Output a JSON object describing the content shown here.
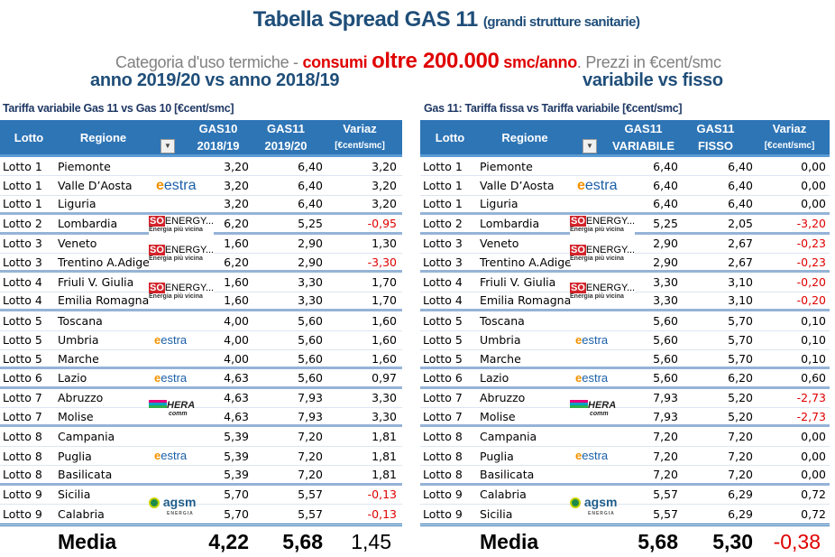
{
  "title": {
    "main": "Tabella Spread GAS 11",
    "sub": "(grandi strutture sanitarie)"
  },
  "subtitle": {
    "p1": "Categoria d'uso termiche - ",
    "p2": "consumi ",
    "p3": "oltre 200.000",
    "p4": " smc/anno",
    "p5": ". Prezzi in €cent/smc"
  },
  "colors": {
    "header": "#2e75b6",
    "title": "#1f4e79",
    "negative": "#e00000"
  },
  "left": {
    "section": "anno 2019/20 vs anno 2018/19",
    "caption": "Tariffa variabile Gas 11 vs Gas 10 [€cent/smc]",
    "headers": {
      "lotto": "Lotto",
      "regione": "Regione",
      "c1a": "GAS10",
      "c1b": "2018/19",
      "c2a": "GAS11",
      "c2b": "2019/20",
      "c3a": "Variaz",
      "c3b": "[€cent/smc]"
    },
    "rows": [
      {
        "lotto": "Lotto 1",
        "regione": "Piemonte",
        "a": "3,20",
        "b": "6,40",
        "v": "3,20"
      },
      {
        "lotto": "Lotto 1",
        "regione": "Valle D’Aosta",
        "a": "3,20",
        "b": "6,40",
        "v": "3,20",
        "logo": "estra"
      },
      {
        "lotto": "Lotto 1",
        "regione": "Liguria",
        "a": "3,20",
        "b": "6,40",
        "v": "3,20",
        "end": true
      },
      {
        "lotto": "Lotto 2",
        "regione": "Lombardia",
        "a": "6,20",
        "b": "5,25",
        "v": "-0,95",
        "logo": "soenergy",
        "end": true
      },
      {
        "lotto": "Lotto 3",
        "regione": "Veneto",
        "a": "1,60",
        "b": "2,90",
        "v": "1,30",
        "logo": "soenergy",
        "span": true
      },
      {
        "lotto": "Lotto 3",
        "regione": "Trentino A.Adige",
        "a": "6,20",
        "b": "2,90",
        "v": "-3,30",
        "end": true
      },
      {
        "lotto": "Lotto 4",
        "regione": "Friuli V. Giulia",
        "a": "1,60",
        "b": "3,30",
        "v": "1,70",
        "logo": "soenergy",
        "span": true
      },
      {
        "lotto": "Lotto 4",
        "regione": "Emilia Romagna",
        "a": "1,60",
        "b": "3,30",
        "v": "1,70",
        "end": true
      },
      {
        "lotto": "Lotto 5",
        "regione": "Toscana",
        "a": "4,00",
        "b": "5,60",
        "v": "1,60"
      },
      {
        "lotto": "Lotto 5",
        "regione": "Umbria",
        "a": "4,00",
        "b": "5,60",
        "v": "1,60",
        "logo": "estra-sm"
      },
      {
        "lotto": "Lotto 5",
        "regione": "Marche",
        "a": "4,00",
        "b": "5,60",
        "v": "1,60",
        "end": true
      },
      {
        "lotto": "Lotto 6",
        "regione": "Lazio",
        "a": "4,63",
        "b": "5,60",
        "v": "0,97",
        "logo": "estra-sm",
        "end": true
      },
      {
        "lotto": "Lotto 7",
        "regione": "Abruzzo",
        "a": "4,63",
        "b": "7,93",
        "v": "3,30",
        "logo": "hera",
        "span": true
      },
      {
        "lotto": "Lotto 7",
        "regione": "Molise",
        "a": "4,63",
        "b": "7,93",
        "v": "3,30",
        "end": true
      },
      {
        "lotto": "Lotto 8",
        "regione": "Campania",
        "a": "5,39",
        "b": "7,20",
        "v": "1,81"
      },
      {
        "lotto": "Lotto 8",
        "regione": "Puglia",
        "a": "5,39",
        "b": "7,20",
        "v": "1,81",
        "logo": "estra-sm"
      },
      {
        "lotto": "Lotto 8",
        "regione": "Basilicata",
        "a": "5,39",
        "b": "7,20",
        "v": "1,81",
        "end": true
      },
      {
        "lotto": "Lotto 9",
        "regione": "Sicilia",
        "a": "5,70",
        "b": "5,57",
        "v": "-0,13",
        "logo": "agsm",
        "span": true
      },
      {
        "lotto": "Lotto 9",
        "regione": "Calabria",
        "a": "5,70",
        "b": "5,57",
        "v": "-0,13"
      }
    ],
    "media": {
      "label": "Media",
      "a": "4,22",
      "b": "5,68",
      "v": "1,45"
    }
  },
  "right": {
    "section": "variabile vs fisso",
    "caption": "Gas 11: Tariffa fissa vs Tariffa variabile [€cent/smc]",
    "headers": {
      "lotto": "Lotto",
      "regione": "Regione",
      "c1a": "GAS11",
      "c1b": "VARIABILE",
      "c2a": "GAS11",
      "c2b": "FISSO",
      "c3a": "Variaz",
      "c3b": "[€cent/smc]"
    },
    "rows": [
      {
        "lotto": "Lotto 1",
        "regione": "Piemonte",
        "a": "6,40",
        "b": "6,40",
        "v": "0,00"
      },
      {
        "lotto": "Lotto 1",
        "regione": "Valle D’Aosta",
        "a": "6,40",
        "b": "6,40",
        "v": "0,00",
        "logo": "estra"
      },
      {
        "lotto": "Lotto 1",
        "regione": "Liguria",
        "a": "6,40",
        "b": "6,40",
        "v": "0,00",
        "end": true
      },
      {
        "lotto": "Lotto 2",
        "regione": "Lombardia",
        "a": "5,25",
        "b": "2,05",
        "v": "-3,20",
        "logo": "soenergy",
        "end": true
      },
      {
        "lotto": "Lotto 3",
        "regione": "Veneto",
        "a": "2,90",
        "b": "2,67",
        "v": "-0,23",
        "logo": "soenergy",
        "span": true
      },
      {
        "lotto": "Lotto 3",
        "regione": "Trentino A.Adige",
        "a": "2,90",
        "b": "2,67",
        "v": "-0,23",
        "end": true
      },
      {
        "lotto": "Lotto 4",
        "regione": "Friuli V. Giulia",
        "a": "3,30",
        "b": "3,10",
        "v": "-0,20",
        "logo": "soenergy",
        "span": true
      },
      {
        "lotto": "Lotto 4",
        "regione": "Emilia Romagna",
        "a": "3,30",
        "b": "3,10",
        "v": "-0,20",
        "end": true
      },
      {
        "lotto": "Lotto 5",
        "regione": "Toscana",
        "a": "5,60",
        "b": "5,70",
        "v": "0,10"
      },
      {
        "lotto": "Lotto 5",
        "regione": "Umbria",
        "a": "5,60",
        "b": "5,70",
        "v": "0,10",
        "logo": "estra-sm"
      },
      {
        "lotto": "Lotto 5",
        "regione": "Marche",
        "a": "5,60",
        "b": "5,70",
        "v": "0,10",
        "end": true
      },
      {
        "lotto": "Lotto 6",
        "regione": "Lazio",
        "a": "5,60",
        "b": "6,20",
        "v": "0,60",
        "logo": "estra-sm",
        "end": true
      },
      {
        "lotto": "Lotto 7",
        "regione": "Abruzzo",
        "a": "7,93",
        "b": "5,20",
        "v": "-2,73",
        "logo": "hera",
        "span": true
      },
      {
        "lotto": "Lotto 7",
        "regione": "Molise",
        "a": "7,93",
        "b": "5,20",
        "v": "-2,73",
        "end": true
      },
      {
        "lotto": "Lotto 8",
        "regione": "Campania",
        "a": "7,20",
        "b": "7,20",
        "v": "0,00"
      },
      {
        "lotto": "Lotto 8",
        "regione": "Puglia",
        "a": "7,20",
        "b": "7,20",
        "v": "0,00",
        "logo": "estra-sm"
      },
      {
        "lotto": "Lotto 8",
        "regione": "Basilicata",
        "a": "7,20",
        "b": "7,20",
        "v": "0,00",
        "end": true
      },
      {
        "lotto": "Lotto 9",
        "regione": "Calabria",
        "a": "5,57",
        "b": "6,29",
        "v": "0,72",
        "logo": "agsm",
        "span": true
      },
      {
        "lotto": "Lotto 9",
        "regione": "Sicilia",
        "a": "5,57",
        "b": "6,29",
        "v": "0,72"
      }
    ],
    "media": {
      "label": "Media",
      "a": "5,68",
      "b": "5,30",
      "v": "-0,38"
    }
  },
  "logos": {
    "estra": {
      "a": "e",
      "b": "estra"
    },
    "soenergy": {
      "a": "SO",
      "b": "ENERGY...",
      "t": "Energia più vicina"
    },
    "hera": {
      "a": "HERA",
      "t": "comm"
    },
    "agsm": {
      "a": "agsm",
      "t": "ENERGIA"
    }
  }
}
